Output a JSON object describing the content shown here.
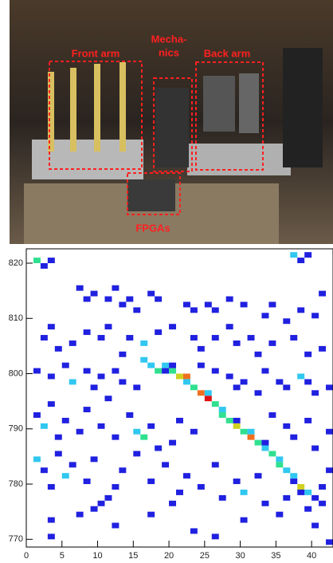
{
  "photo": {
    "labels": {
      "front_arm": "Front arm",
      "mechanics_1": "Mecha-",
      "mechanics_2": "nics",
      "back_arm": "Back arm",
      "fpgas": "FPGAs"
    }
  },
  "chart_data": {
    "type": "heatmap",
    "xlim": [
      0,
      43
    ],
    "ylim": [
      768.6,
      822.6
    ],
    "xticks": [
      0,
      5,
      10,
      15,
      20,
      25,
      30,
      35,
      40
    ],
    "yticks": [
      770,
      780,
      790,
      800,
      810,
      820
    ],
    "colors": [
      "#2020e0",
      "#30c8f0",
      "#30e090",
      "#d0d020",
      "#f07020",
      "#e01010"
    ],
    "cells": [
      {
        "x": 16,
        "y": 802,
        "value": 2
      },
      {
        "x": 17,
        "y": 801,
        "value": 2
      },
      {
        "x": 18,
        "y": 800,
        "value": 3
      },
      {
        "x": 19,
        "y": 801,
        "value": 2
      },
      {
        "x": 20,
        "y": 800,
        "value": 3
      },
      {
        "x": 21,
        "y": 799,
        "value": 4
      },
      {
        "x": 22,
        "y": 799,
        "value": 5
      },
      {
        "x": 23,
        "y": 797,
        "value": 3
      },
      {
        "x": 24,
        "y": 796,
        "value": 5
      },
      {
        "x": 25,
        "y": 795,
        "value": 6
      },
      {
        "x": 26,
        "y": 794,
        "value": 3
      },
      {
        "x": 27,
        "y": 793,
        "value": 2
      },
      {
        "x": 28,
        "y": 791,
        "value": 3
      },
      {
        "x": 29,
        "y": 790,
        "value": 4
      },
      {
        "x": 30,
        "y": 789,
        "value": 3
      },
      {
        "x": 31,
        "y": 788,
        "value": 5
      },
      {
        "x": 32,
        "y": 787,
        "value": 3
      },
      {
        "x": 33,
        "y": 786,
        "value": 2
      },
      {
        "x": 34,
        "y": 785,
        "value": 3
      },
      {
        "x": 35,
        "y": 784,
        "value": 2
      },
      {
        "x": 36,
        "y": 782,
        "value": 2
      },
      {
        "x": 37,
        "y": 781,
        "value": 2
      },
      {
        "x": 38,
        "y": 779,
        "value": 4
      },
      {
        "x": 39,
        "y": 778,
        "value": 2
      },
      {
        "x": 40,
        "y": 777,
        "value": 1
      },
      {
        "x": 41,
        "y": 776,
        "value": 1
      },
      {
        "x": 19,
        "y": 800,
        "value": 1
      },
      {
        "x": 20,
        "y": 801,
        "value": 1
      },
      {
        "x": 22,
        "y": 798,
        "value": 2
      },
      {
        "x": 25,
        "y": 796,
        "value": 2
      },
      {
        "x": 27,
        "y": 792,
        "value": 3
      },
      {
        "x": 29,
        "y": 791,
        "value": 1
      },
      {
        "x": 31,
        "y": 789,
        "value": 2
      },
      {
        "x": 33,
        "y": 787,
        "value": 1
      },
      {
        "x": 35,
        "y": 783,
        "value": 3
      },
      {
        "x": 37,
        "y": 780,
        "value": 1
      },
      {
        "x": 38,
        "y": 778,
        "value": 1
      },
      {
        "x": 1,
        "y": 820,
        "value": 3
      },
      {
        "x": 2,
        "y": 819,
        "value": 1
      },
      {
        "x": 3,
        "y": 820,
        "value": 1
      },
      {
        "x": 7,
        "y": 815,
        "value": 1
      },
      {
        "x": 8,
        "y": 813,
        "value": 1
      },
      {
        "x": 9,
        "y": 814,
        "value": 1
      },
      {
        "x": 11,
        "y": 813,
        "value": 1
      },
      {
        "x": 12,
        "y": 815,
        "value": 1
      },
      {
        "x": 13,
        "y": 812,
        "value": 1
      },
      {
        "x": 14,
        "y": 813,
        "value": 1
      },
      {
        "x": 15,
        "y": 811,
        "value": 1
      },
      {
        "x": 17,
        "y": 814,
        "value": 1
      },
      {
        "x": 18,
        "y": 813,
        "value": 1
      },
      {
        "x": 22,
        "y": 812,
        "value": 1
      },
      {
        "x": 23,
        "y": 811,
        "value": 1
      },
      {
        "x": 25,
        "y": 812,
        "value": 1
      },
      {
        "x": 26,
        "y": 811,
        "value": 1
      },
      {
        "x": 28,
        "y": 813,
        "value": 1
      },
      {
        "x": 30,
        "y": 812,
        "value": 1
      },
      {
        "x": 33,
        "y": 810,
        "value": 1
      },
      {
        "x": 34,
        "y": 812,
        "value": 1
      },
      {
        "x": 36,
        "y": 809,
        "value": 1
      },
      {
        "x": 38,
        "y": 811,
        "value": 1
      },
      {
        "x": 40,
        "y": 810,
        "value": 1
      },
      {
        "x": 41,
        "y": 814,
        "value": 1
      },
      {
        "x": 37,
        "y": 821,
        "value": 2
      },
      {
        "x": 38,
        "y": 820,
        "value": 1
      },
      {
        "x": 39,
        "y": 821,
        "value": 1
      },
      {
        "x": 2,
        "y": 806,
        "value": 1
      },
      {
        "x": 3,
        "y": 808,
        "value": 1
      },
      {
        "x": 4,
        "y": 804,
        "value": 1
      },
      {
        "x": 6,
        "y": 805,
        "value": 1
      },
      {
        "x": 8,
        "y": 807,
        "value": 1
      },
      {
        "x": 10,
        "y": 806,
        "value": 1
      },
      {
        "x": 11,
        "y": 808,
        "value": 1
      },
      {
        "x": 13,
        "y": 803,
        "value": 1
      },
      {
        "x": 14,
        "y": 806,
        "value": 1
      },
      {
        "x": 16,
        "y": 805,
        "value": 2
      },
      {
        "x": 18,
        "y": 807,
        "value": 1
      },
      {
        "x": 20,
        "y": 808,
        "value": 1
      },
      {
        "x": 23,
        "y": 806,
        "value": 1
      },
      {
        "x": 24,
        "y": 804,
        "value": 1
      },
      {
        "x": 26,
        "y": 806,
        "value": 1
      },
      {
        "x": 28,
        "y": 808,
        "value": 1
      },
      {
        "x": 29,
        "y": 805,
        "value": 1
      },
      {
        "x": 31,
        "y": 806,
        "value": 1
      },
      {
        "x": 32,
        "y": 803,
        "value": 1
      },
      {
        "x": 34,
        "y": 805,
        "value": 1
      },
      {
        "x": 37,
        "y": 806,
        "value": 1
      },
      {
        "x": 39,
        "y": 803,
        "value": 1
      },
      {
        "x": 41,
        "y": 804,
        "value": 1
      },
      {
        "x": 1,
        "y": 800,
        "value": 1
      },
      {
        "x": 3,
        "y": 799,
        "value": 1
      },
      {
        "x": 5,
        "y": 801,
        "value": 1
      },
      {
        "x": 6,
        "y": 798,
        "value": 2
      },
      {
        "x": 8,
        "y": 800,
        "value": 1
      },
      {
        "x": 9,
        "y": 797,
        "value": 1
      },
      {
        "x": 10,
        "y": 799,
        "value": 1
      },
      {
        "x": 12,
        "y": 800,
        "value": 1
      },
      {
        "x": 13,
        "y": 798,
        "value": 1
      },
      {
        "x": 15,
        "y": 797,
        "value": 1
      },
      {
        "x": 24,
        "y": 801,
        "value": 1
      },
      {
        "x": 26,
        "y": 800,
        "value": 1
      },
      {
        "x": 28,
        "y": 799,
        "value": 1
      },
      {
        "x": 29,
        "y": 797,
        "value": 1
      },
      {
        "x": 30,
        "y": 798,
        "value": 1
      },
      {
        "x": 32,
        "y": 796,
        "value": 1
      },
      {
        "x": 33,
        "y": 800,
        "value": 1
      },
      {
        "x": 35,
        "y": 798,
        "value": 1
      },
      {
        "x": 36,
        "y": 797,
        "value": 1
      },
      {
        "x": 38,
        "y": 799,
        "value": 2
      },
      {
        "x": 39,
        "y": 798,
        "value": 1
      },
      {
        "x": 40,
        "y": 796,
        "value": 1
      },
      {
        "x": 42,
        "y": 797,
        "value": 1
      },
      {
        "x": 1,
        "y": 792,
        "value": 1
      },
      {
        "x": 2,
        "y": 790,
        "value": 2
      },
      {
        "x": 3,
        "y": 794,
        "value": 1
      },
      {
        "x": 4,
        "y": 788,
        "value": 1
      },
      {
        "x": 5,
        "y": 791,
        "value": 1
      },
      {
        "x": 7,
        "y": 789,
        "value": 1
      },
      {
        "x": 8,
        "y": 793,
        "value": 1
      },
      {
        "x": 10,
        "y": 790,
        "value": 1
      },
      {
        "x": 11,
        "y": 795,
        "value": 1
      },
      {
        "x": 12,
        "y": 788,
        "value": 1
      },
      {
        "x": 14,
        "y": 792,
        "value": 1
      },
      {
        "x": 15,
        "y": 789,
        "value": 2
      },
      {
        "x": 16,
        "y": 788,
        "value": 3
      },
      {
        "x": 17,
        "y": 790,
        "value": 1
      },
      {
        "x": 18,
        "y": 786,
        "value": 1
      },
      {
        "x": 20,
        "y": 787,
        "value": 1
      },
      {
        "x": 21,
        "y": 791,
        "value": 1
      },
      {
        "x": 23,
        "y": 789,
        "value": 1
      },
      {
        "x": 34,
        "y": 792,
        "value": 1
      },
      {
        "x": 36,
        "y": 790,
        "value": 1
      },
      {
        "x": 37,
        "y": 788,
        "value": 1
      },
      {
        "x": 39,
        "y": 791,
        "value": 1
      },
      {
        "x": 40,
        "y": 786,
        "value": 1
      },
      {
        "x": 42,
        "y": 789,
        "value": 1
      },
      {
        "x": 1,
        "y": 784,
        "value": 2
      },
      {
        "x": 2,
        "y": 782,
        "value": 1
      },
      {
        "x": 3,
        "y": 779,
        "value": 1
      },
      {
        "x": 4,
        "y": 785,
        "value": 1
      },
      {
        "x": 5,
        "y": 781,
        "value": 2
      },
      {
        "x": 6,
        "y": 783,
        "value": 1
      },
      {
        "x": 8,
        "y": 780,
        "value": 1
      },
      {
        "x": 9,
        "y": 784,
        "value": 1
      },
      {
        "x": 10,
        "y": 776,
        "value": 1
      },
      {
        "x": 11,
        "y": 777,
        "value": 1
      },
      {
        "x": 12,
        "y": 779,
        "value": 1
      },
      {
        "x": 13,
        "y": 782,
        "value": 1
      },
      {
        "x": 15,
        "y": 785,
        "value": 1
      },
      {
        "x": 17,
        "y": 780,
        "value": 1
      },
      {
        "x": 19,
        "y": 783,
        "value": 1
      },
      {
        "x": 21,
        "y": 778,
        "value": 1
      },
      {
        "x": 22,
        "y": 781,
        "value": 1
      },
      {
        "x": 24,
        "y": 779,
        "value": 1
      },
      {
        "x": 26,
        "y": 783,
        "value": 1
      },
      {
        "x": 27,
        "y": 777,
        "value": 1
      },
      {
        "x": 29,
        "y": 780,
        "value": 1
      },
      {
        "x": 30,
        "y": 778,
        "value": 2
      },
      {
        "x": 32,
        "y": 781,
        "value": 1
      },
      {
        "x": 33,
        "y": 776,
        "value": 1
      },
      {
        "x": 36,
        "y": 777,
        "value": 1
      },
      {
        "x": 39,
        "y": 775,
        "value": 1
      },
      {
        "x": 41,
        "y": 779,
        "value": 1
      },
      {
        "x": 42,
        "y": 782,
        "value": 1
      },
      {
        "x": 3,
        "y": 773,
        "value": 1
      },
      {
        "x": 7,
        "y": 774,
        "value": 1
      },
      {
        "x": 9,
        "y": 775,
        "value": 1
      },
      {
        "x": 12,
        "y": 772,
        "value": 1
      },
      {
        "x": 17,
        "y": 774,
        "value": 1
      },
      {
        "x": 20,
        "y": 776,
        "value": 1
      },
      {
        "x": 23,
        "y": 771,
        "value": 1
      },
      {
        "x": 26,
        "y": 770,
        "value": 1
      },
      {
        "x": 30,
        "y": 773,
        "value": 1
      },
      {
        "x": 35,
        "y": 774,
        "value": 1
      },
      {
        "x": 40,
        "y": 772,
        "value": 1
      },
      {
        "x": 3,
        "y": 770,
        "value": 1
      },
      {
        "x": 42,
        "y": 769,
        "value": 1
      }
    ]
  }
}
